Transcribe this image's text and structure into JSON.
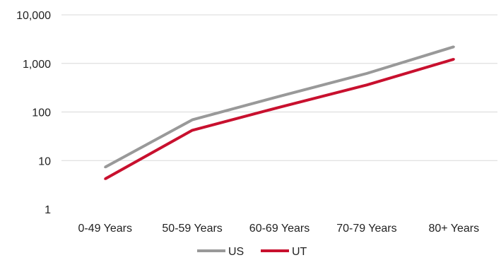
{
  "chart_data": {
    "type": "line",
    "title": "",
    "xlabel": "",
    "ylabel": "",
    "y_scale": "log",
    "ylim": [
      1,
      10000
    ],
    "y_ticks": [
      1,
      10,
      100,
      1000,
      10000
    ],
    "y_tick_labels": [
      "1",
      "10",
      "100",
      "1,000",
      "10,000"
    ],
    "categories": [
      "0-49 Years",
      "50-59 Years",
      "60-69 Years",
      "70-79 Years",
      "80+ Years"
    ],
    "grid": true,
    "legend_position": "bottom",
    "series": [
      {
        "name": "US",
        "color": "#999999",
        "values": [
          7.3,
          69,
          210,
          620,
          2200
        ]
      },
      {
        "name": "UT",
        "color": "#c8102e",
        "values": [
          4.2,
          42,
          125,
          360,
          1220
        ]
      }
    ]
  }
}
